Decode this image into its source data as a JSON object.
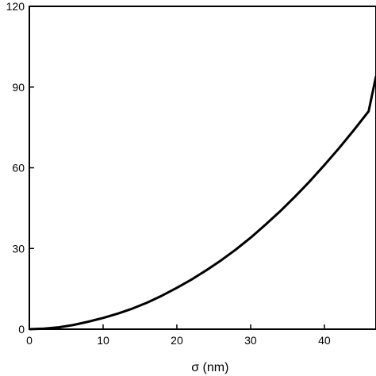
{
  "chart_data": {
    "type": "line",
    "title": "",
    "xlabel": "σ (nm)",
    "ylabel": "",
    "xlim": [
      0,
      47
    ],
    "ylim": [
      0,
      120
    ],
    "xticks": [
      0,
      10,
      20,
      30,
      40
    ],
    "yticks": [
      0,
      30,
      60,
      90,
      120
    ],
    "xtick_labels": [
      "0",
      "10",
      "20",
      "30",
      "40"
    ],
    "ytick_labels": [
      "0",
      "30",
      "60",
      "90",
      "120"
    ],
    "grid": false,
    "legend": "none",
    "colors": {
      "line": "#000000",
      "axes": "#000000",
      "background": "#ffffff"
    },
    "series": [
      {
        "x": [
          0,
          2,
          4,
          6,
          8,
          10,
          12,
          14,
          16,
          18,
          20,
          22,
          24,
          26,
          28,
          30,
          32,
          34,
          36,
          38,
          40,
          42,
          44,
          46,
          47
        ],
        "values": [
          0,
          0.2,
          0.7,
          1.6,
          2.8,
          4.2,
          5.8,
          7.7,
          9.9,
          12.5,
          15.4,
          18.5,
          21.9,
          25.6,
          29.6,
          34.0,
          38.8,
          43.8,
          49.2,
          54.9,
          61.0,
          67.3,
          74.0,
          81.0,
          94.0
        ]
      }
    ]
  }
}
